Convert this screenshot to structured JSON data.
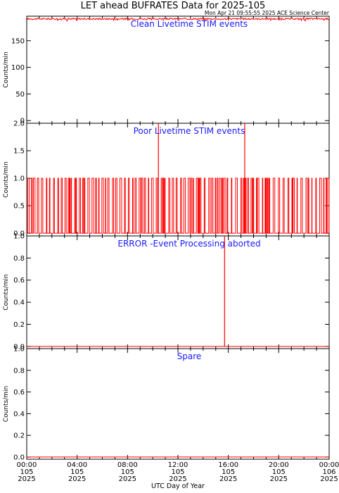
{
  "header": {
    "title": "LET ahead BUFRATES Data for 2025-105",
    "timestamp": "Mon Apr 21 09:55:55 2025 ACE Science Center"
  },
  "chart_data": [
    {
      "type": "line",
      "title": "Clean Livetime STIM events",
      "ylabel": "Counts/min",
      "ylim": [
        -5,
        196
      ],
      "yticks": [
        "0",
        "50",
        "100",
        "150"
      ],
      "y_tick_values": [
        0,
        50,
        100,
        150
      ],
      "xlim": [
        0,
        24
      ],
      "series": [
        {
          "description": "near-constant ~191 counts/min with small jitter",
          "baseline": 191,
          "spikes": []
        }
      ]
    },
    {
      "type": "line",
      "title": "Poor Livetime STIM events",
      "ylabel": "Counts/min",
      "ylim": [
        -0.05,
        2.0
      ],
      "yticks": [
        "0.0",
        "0.5",
        "1.0",
        "1.5",
        "2.0"
      ],
      "y_tick_values": [
        0,
        0.5,
        1.0,
        1.5,
        2.0
      ],
      "xlim": [
        0,
        24
      ],
      "series": [
        {
          "description": "values alternate between 0 and 1 counts/min",
          "baseline": 0,
          "pulse_value": 1,
          "spikes": [
            {
              "x": 10.45,
              "y": 2
            },
            {
              "x": 17.3,
              "y": 2
            }
          ]
        }
      ]
    },
    {
      "type": "line",
      "title": "ERROR -Event Processing aborted",
      "ylabel": "Counts/min",
      "ylim": [
        -0.02,
        1.0
      ],
      "yticks": [
        "0.0",
        "0.2",
        "0.4",
        "0.6",
        "0.8",
        "1.0"
      ],
      "y_tick_values": [
        0,
        0.2,
        0.4,
        0.6,
        0.8,
        1.0
      ],
      "xlim": [
        0,
        24
      ],
      "series": [
        {
          "description": "zero except a single spike",
          "baseline": 0,
          "spikes": [
            {
              "x": 15.7,
              "y": 1
            }
          ]
        }
      ]
    },
    {
      "type": "line",
      "title": "Spare",
      "ylabel": "Counts/min",
      "ylim": [
        -0.02,
        1.0
      ],
      "yticks": [
        "0.0",
        "0.2",
        "0.4",
        "0.6",
        "0.8",
        "1.0"
      ],
      "y_tick_values": [
        0,
        0.2,
        0.4,
        0.6,
        0.8,
        1.0
      ],
      "xlim": [
        0,
        24
      ],
      "series": [
        {
          "description": "flat zero",
          "baseline": 0,
          "spikes": []
        }
      ]
    }
  ],
  "x_axis": {
    "title": "UTC Day of Year",
    "ticks": [
      {
        "x": 0,
        "time": "00:00",
        "doy": "105",
        "year": "2025"
      },
      {
        "x": 4,
        "time": "04:00",
        "doy": "105",
        "year": "2025"
      },
      {
        "x": 8,
        "time": "08:00",
        "doy": "105",
        "year": "2025"
      },
      {
        "x": 12,
        "time": "12:00",
        "doy": "105",
        "year": "2025"
      },
      {
        "x": 16,
        "time": "16:00",
        "doy": "105",
        "year": "2025"
      },
      {
        "x": 20,
        "time": "20:00",
        "doy": "105",
        "year": "2025"
      },
      {
        "x": 24,
        "time": "00:00",
        "doy": "106",
        "year": "2025"
      }
    ]
  },
  "colors": {
    "trace": "#ff0000",
    "panel_title": "#1a1aff",
    "axes": "#000000"
  }
}
